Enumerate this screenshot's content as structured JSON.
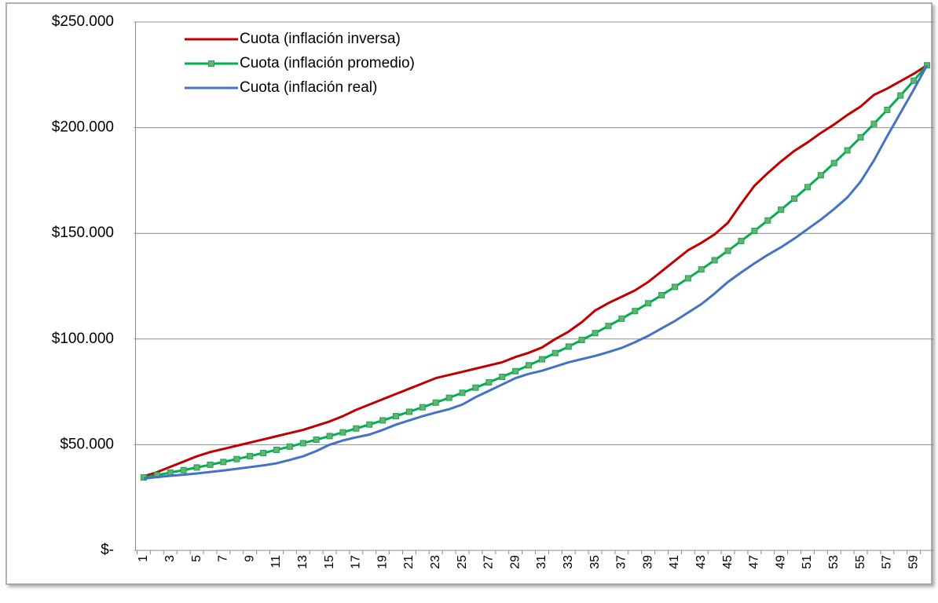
{
  "chart_data": {
    "type": "line",
    "categories": [
      1,
      null,
      3,
      null,
      5,
      null,
      7,
      null,
      9,
      null,
      11,
      null,
      13,
      null,
      15,
      null,
      17,
      null,
      19,
      null,
      21,
      null,
      23,
      null,
      25,
      null,
      27,
      null,
      29,
      null,
      31,
      null,
      33,
      null,
      35,
      null,
      37,
      null,
      39,
      null,
      41,
      null,
      43,
      null,
      45,
      null,
      47,
      null,
      49,
      null,
      51,
      null,
      53,
      null,
      55,
      null,
      57,
      null,
      59,
      null
    ],
    "series": [
      {
        "name": "Cuota (inflación inversa)",
        "color": "#c00000",
        "values": [
          35000,
          37000,
          39500,
          42000,
          44500,
          46500,
          48000,
          49500,
          51000,
          52500,
          54000,
          55500,
          57000,
          59000,
          61000,
          63500,
          66500,
          69000,
          71500,
          74000,
          76500,
          79000,
          81500,
          83000,
          84500,
          86000,
          87500,
          89000,
          91500,
          93500,
          96000,
          100000,
          103500,
          108000,
          113500,
          117000,
          120000,
          123000,
          127000,
          132000,
          137000,
          142000,
          145500,
          149500,
          155000,
          164000,
          172500,
          178500,
          184000,
          189000,
          193000,
          197500,
          201500,
          206000,
          210000,
          215500,
          218500,
          222000,
          225500,
          229500
        ]
      },
      {
        "name": "Cuota (inflación promedio)",
        "color": "#00b050",
        "marker": "square",
        "marker_color": "#6fae6f",
        "values": [
          34500,
          35626,
          36790,
          37990,
          39230,
          40510,
          41830,
          43200,
          44610,
          46060,
          47570,
          49120,
          50720,
          52380,
          54090,
          55850,
          57670,
          59560,
          61500,
          63510,
          65580,
          67720,
          69930,
          72210,
          74570,
          77000,
          79520,
          82110,
          84790,
          87560,
          90420,
          93370,
          96420,
          99560,
          102810,
          106170,
          109630,
          113210,
          116910,
          120720,
          124660,
          128730,
          132930,
          137270,
          141750,
          146380,
          151150,
          156090,
          161180,
          166440,
          171870,
          177480,
          183270,
          189250,
          195430,
          201810,
          208400,
          215200,
          222220,
          229500
        ]
      },
      {
        "name": "Cuota (inflación real)",
        "color": "#4472c4",
        "values": [
          34000,
          34700,
          35300,
          35800,
          36400,
          37100,
          37800,
          38600,
          39400,
          40200,
          41200,
          42800,
          44500,
          47000,
          50000,
          52000,
          53500,
          54800,
          57000,
          59500,
          61500,
          63500,
          65200,
          66800,
          69000,
          72500,
          75500,
          78500,
          81500,
          83500,
          85000,
          87000,
          89000,
          90500,
          92000,
          93800,
          95800,
          98500,
          101500,
          105000,
          108500,
          112500,
          116500,
          121500,
          127000,
          131500,
          135800,
          139800,
          143400,
          147500,
          152000,
          156500,
          161500,
          167000,
          174500,
          184500,
          196000,
          207000,
          218000,
          229500
        ]
      }
    ],
    "ylim": [
      0,
      250000
    ],
    "yticks": [
      {
        "value": 0,
        "label": "$-"
      },
      {
        "value": 50000,
        "label": "$50.000"
      },
      {
        "value": 100000,
        "label": "$100.000"
      },
      {
        "value": 150000,
        "label": "$150.000"
      },
      {
        "value": 200000,
        "label": "$200.000"
      },
      {
        "value": 250000,
        "label": "$250.000"
      }
    ],
    "grid": true,
    "legend": "top-left"
  }
}
